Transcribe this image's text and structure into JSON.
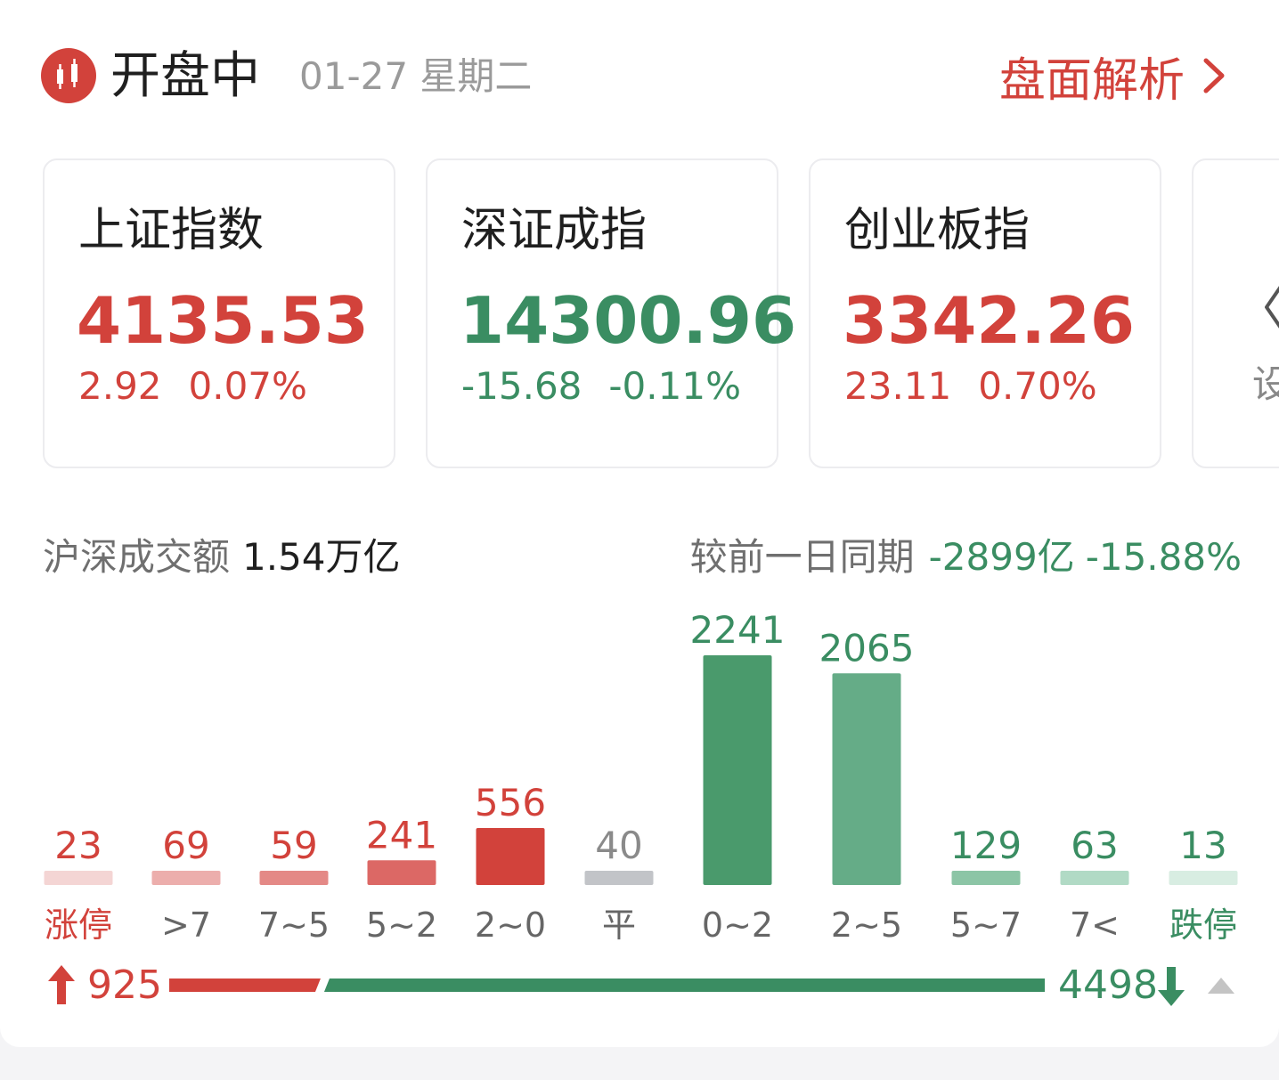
{
  "header": {
    "status": "开盘中",
    "date": "01-27 星期二",
    "analysis_link": "盘面解析"
  },
  "indices": [
    {
      "name": "上证指数",
      "value": "4135.53",
      "change": "2.92",
      "change_pct": "0.07%",
      "trend": "up"
    },
    {
      "name": "深证成指",
      "value": "14300.96",
      "change": "-15.68",
      "change_pct": "-0.11%",
      "trend": "down"
    },
    {
      "name": "创业板指",
      "value": "3342.26",
      "change": "23.11",
      "change_pct": "0.70%",
      "trend": "up"
    }
  ],
  "partial_card": {
    "label": "设"
  },
  "turnover": {
    "label": "沪深成交额",
    "value": "1.54万亿",
    "compare_label": "较前一日同期",
    "compare_amount": "-2899亿",
    "compare_pct": "-15.88%"
  },
  "colors": {
    "up": "#d2423b",
    "down": "#3a8d62",
    "flat": "#c2c4c8"
  },
  "chart_data": {
    "type": "bar",
    "categories": [
      "涨停",
      ">7",
      "7~5",
      "5~2",
      "2~0",
      "平",
      "0~2",
      "2~5",
      "5~7",
      "7<",
      "跌停"
    ],
    "values": [
      23,
      69,
      59,
      241,
      556,
      40,
      2241,
      2065,
      129,
      63,
      13
    ],
    "value_labels": [
      "23",
      "69",
      "59",
      "241",
      "556",
      "40",
      "2241",
      "2065",
      "129",
      "63",
      "13"
    ],
    "bar_colors": [
      "#f4d5d4",
      "#ecaeac",
      "#e48986",
      "#dc6865",
      "#d2423b",
      "#c2c4c8",
      "#4a9a6c",
      "#65ac87",
      "#8cc5a6",
      "#b1dac5",
      "#d8ede2"
    ],
    "label_colors": [
      "#d2423b",
      "#d2423b",
      "#d2423b",
      "#d2423b",
      "#d2423b",
      "#8a8a8a",
      "#3a8d62",
      "#3a8d62",
      "#3a8d62",
      "#3a8d62",
      "#3a8d62"
    ],
    "category_label_colors": [
      "#d2423b",
      "#666666",
      "#666666",
      "#666666",
      "#666666",
      "#666666",
      "#666666",
      "#666666",
      "#666666",
      "#666666",
      "#3a8d62"
    ]
  },
  "breadth": {
    "up": 925,
    "down": 4498,
    "up_label": "925",
    "down_label": "4498"
  }
}
